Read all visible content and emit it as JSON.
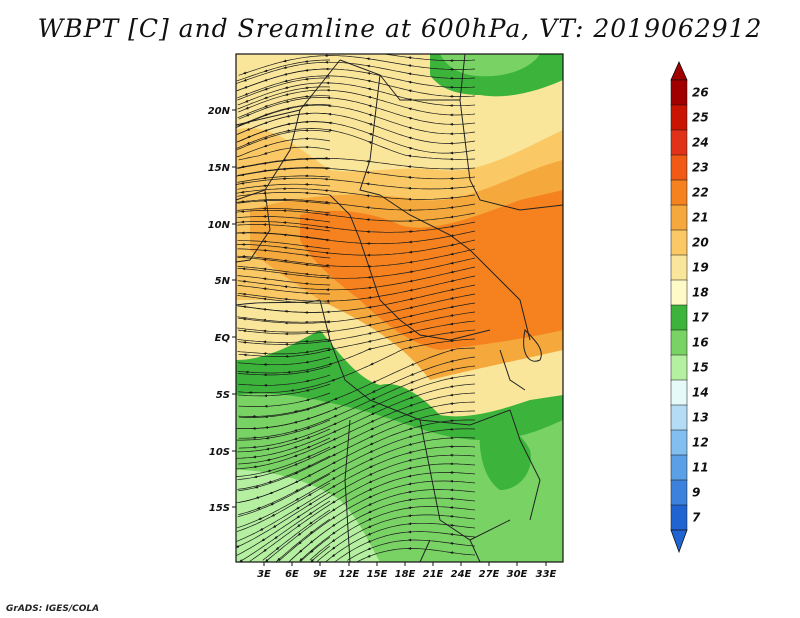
{
  "title": "WBPT [C] and Sreamline at 600hPa, VT: 2019062912",
  "credit": "GrADS: IGES/COLA",
  "map": {
    "lon_labels": [
      "3E",
      "6E",
      "9E",
      "12E",
      "15E",
      "18E",
      "21E",
      "24E",
      "27E",
      "30E",
      "33E"
    ],
    "lat_labels": [
      "20N",
      "15N",
      "10N",
      "5N",
      "EQ",
      "5S",
      "10S",
      "15S"
    ],
    "regions": [
      {
        "name": "north-plateau",
        "value": 19
      },
      {
        "name": "north-ridge",
        "value": 20
      },
      {
        "name": "central-band",
        "value": 21
      },
      {
        "name": "east-core",
        "value": 22
      },
      {
        "name": "northeast-green",
        "value": 17
      },
      {
        "name": "south-green",
        "value": 17
      },
      {
        "name": "southwest-light",
        "value": 16
      }
    ]
  },
  "colorbar": {
    "labels": [
      "26",
      "25",
      "24",
      "23",
      "22",
      "21",
      "20",
      "19",
      "18",
      "17",
      "16",
      "15",
      "14",
      "13",
      "12",
      "11",
      "9",
      "7"
    ],
    "colors": [
      "#a00000",
      "#c81400",
      "#e03218",
      "#f05a14",
      "#f5821e",
      "#f5a83c",
      "#fac864",
      "#fae69b",
      "#fffac8",
      "#3cb43c",
      "#78d264",
      "#b4f0a0",
      "#e6fafa",
      "#b4dcf5",
      "#82bef0",
      "#5aa0e6",
      "#3c82dc",
      "#2064d2"
    ],
    "top_arrow_color": "#a00000",
    "bottom_arrow_color": "#2064d2"
  },
  "colors": {
    "frame": "#111111",
    "borders": "#222222",
    "streamlines": "#1a1a1a"
  }
}
